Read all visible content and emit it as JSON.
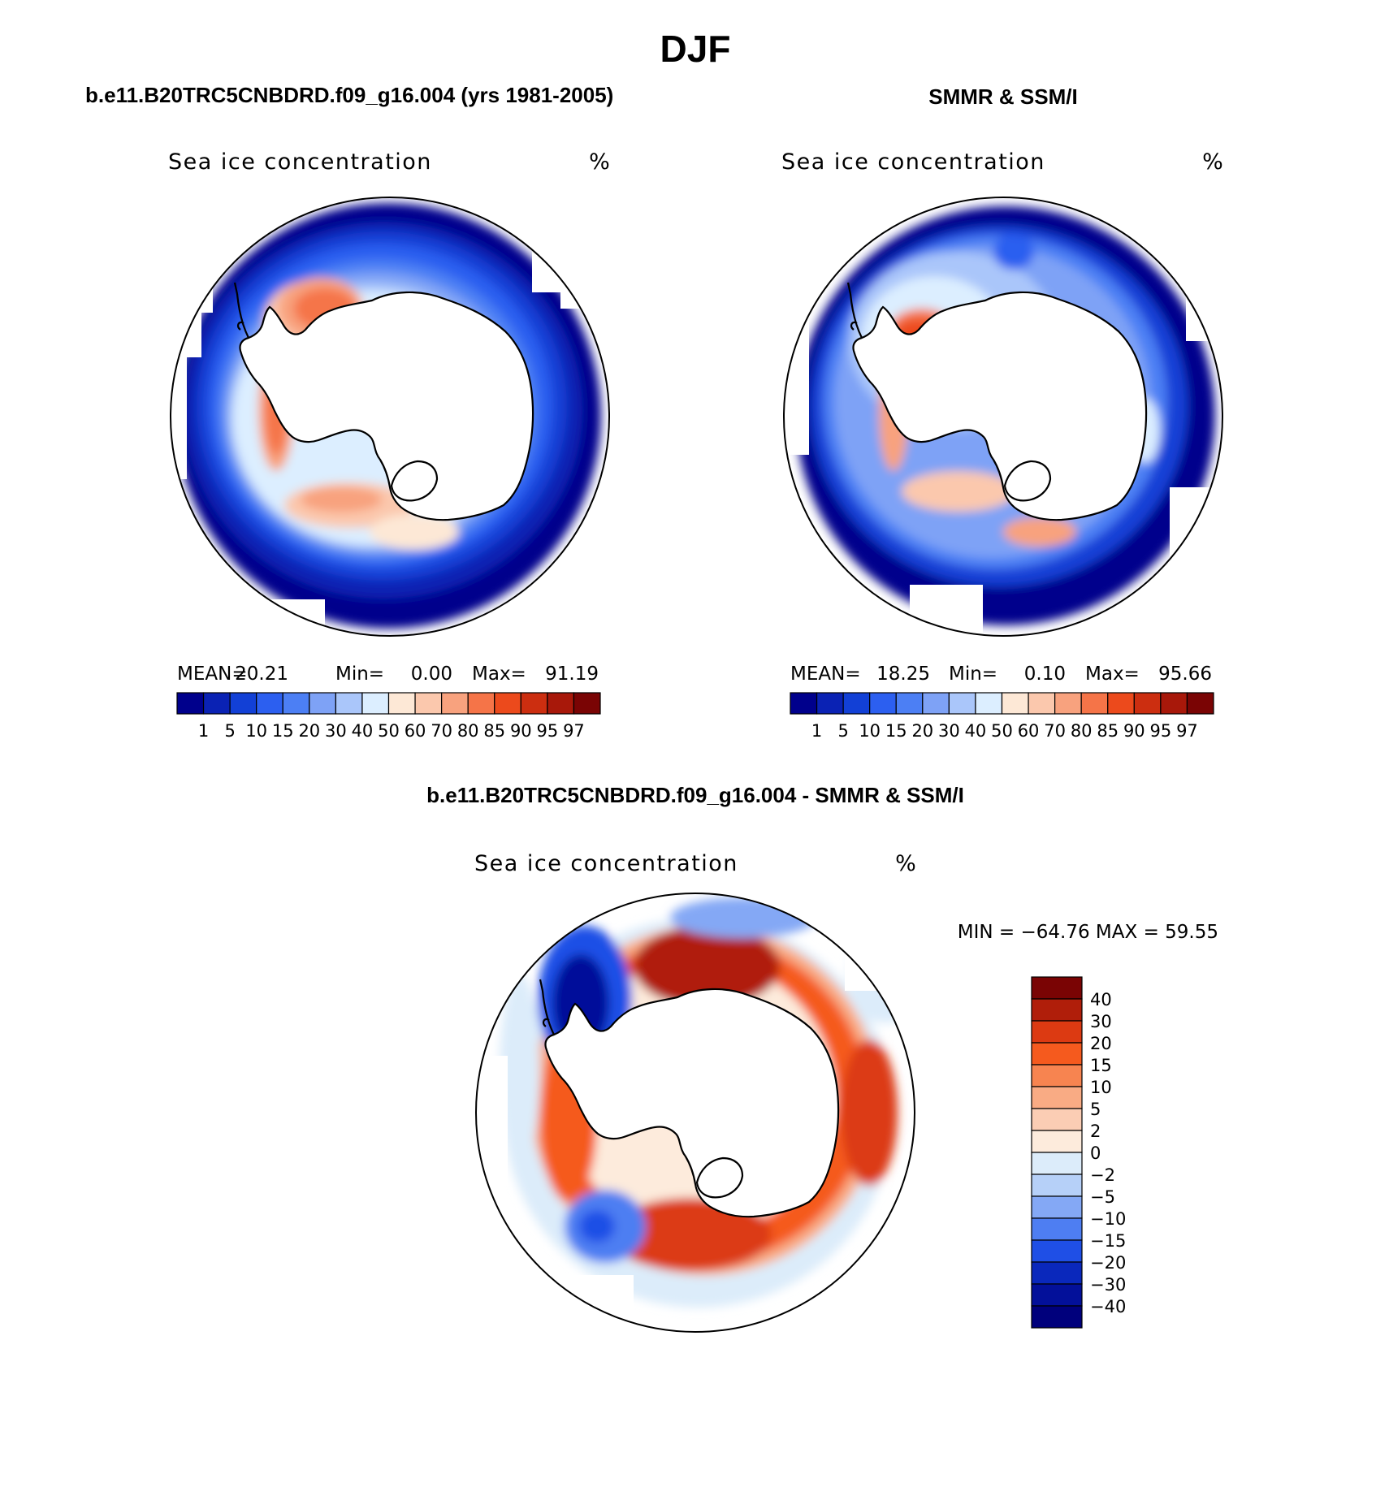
{
  "figure": {
    "season": "DJF",
    "left_title": "b.e11.B20TRC5CNBDRD.f09_g16.004 (yrs 1981-2005)",
    "right_title": "SMMR & SSM/I",
    "diff_title": "b.e11.B20TRC5CNBDRD.f09_g16.004 - SMMR & SSM/I"
  },
  "panels": {
    "model": {
      "variable": "Sea ice concentration",
      "units": "%",
      "stats": {
        "mean_label": "MEAN=",
        "mean": "20.21",
        "min_label": "Min=",
        "min": "0.00",
        "max_label": "Max=",
        "max": "91.19"
      }
    },
    "obs": {
      "variable": "Sea ice concentration",
      "units": "%",
      "stats": {
        "mean_label": "MEAN=",
        "mean": "18.25",
        "min_label": "Min=",
        "min": "0.10",
        "max_label": "Max=",
        "max": "95.66"
      }
    },
    "diff": {
      "variable": "Sea ice concentration",
      "units": "%",
      "minmax": "MIN = −64.76 MAX =  59.55"
    }
  },
  "colorbars": {
    "abs_levels": [
      "1",
      "5",
      "10",
      "15",
      "20",
      "30",
      "40",
      "50",
      "60",
      "70",
      "80",
      "85",
      "90",
      "95",
      "97"
    ],
    "abs_colors": [
      "#00008c",
      "#0a22b4",
      "#1240d6",
      "#2c5ff0",
      "#4c7ff4",
      "#7ea2f6",
      "#aac6fa",
      "#dceeff",
      "#fde8d6",
      "#fbc8ad",
      "#f8a27e",
      "#f57448",
      "#ec4a1c",
      "#cc2e10",
      "#a8180a",
      "#7a0404"
    ],
    "diff_levels": [
      "40",
      "30",
      "20",
      "15",
      "10",
      "5",
      "2",
      "0",
      "−2",
      "−5",
      "−10",
      "−15",
      "−20",
      "−30",
      "−40"
    ],
    "diff_colors": [
      "#7a0404",
      "#b01e0a",
      "#dc3a12",
      "#f55a1e",
      "#f78450",
      "#f9ab84",
      "#fbcdb4",
      "#fdebdc",
      "#dcecfa",
      "#b6d0f8",
      "#84a8f5",
      "#4e7ef2",
      "#1f4fe6",
      "#0a28bc",
      "#03109a",
      "#00007c"
    ]
  }
}
